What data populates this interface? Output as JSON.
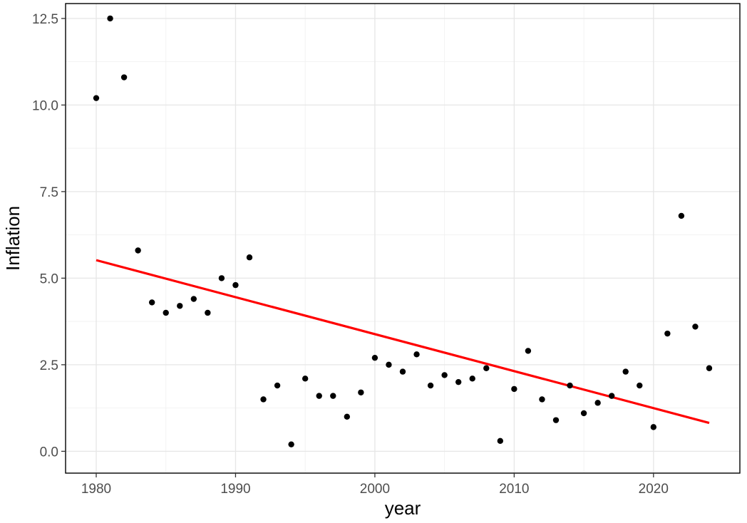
{
  "chart_data": {
    "type": "scatter",
    "xlabel": "year",
    "ylabel": "Inflation",
    "xlim": [
      1977.8,
      2026.2
    ],
    "ylim": [
      -0.63,
      12.93
    ],
    "x_ticks": [
      1980,
      1990,
      2000,
      2010,
      2020
    ],
    "y_ticks": [
      0.0,
      2.5,
      5.0,
      7.5,
      10.0,
      12.5
    ],
    "y_tick_labels": [
      "0.0",
      "2.5",
      "5.0",
      "7.5",
      "10.0",
      "12.5"
    ],
    "grid": true,
    "x": [
      1980,
      1981,
      1982,
      1983,
      1984,
      1985,
      1986,
      1987,
      1988,
      1989,
      1990,
      1991,
      1992,
      1993,
      1994,
      1995,
      1996,
      1997,
      1998,
      1999,
      2000,
      2001,
      2002,
      2003,
      2004,
      2005,
      2006,
      2007,
      2008,
      2009,
      2010,
      2011,
      2012,
      2013,
      2014,
      2015,
      2016,
      2017,
      2018,
      2019,
      2020,
      2021,
      2022,
      2023,
      2024
    ],
    "y": [
      10.2,
      12.5,
      10.8,
      5.8,
      4.3,
      4.0,
      4.2,
      4.4,
      4.0,
      5.0,
      4.8,
      5.6,
      1.5,
      1.9,
      0.2,
      2.1,
      1.6,
      1.6,
      1.0,
      1.7,
      2.7,
      2.5,
      2.3,
      2.8,
      1.9,
      2.2,
      2.0,
      2.1,
      2.4,
      0.3,
      1.8,
      2.9,
      1.5,
      0.9,
      1.9,
      1.1,
      1.4,
      1.6,
      2.3,
      1.9,
      0.7,
      3.4,
      6.8,
      3.6,
      2.4
    ],
    "point_color": "#000000",
    "trend_line": {
      "type": "linear fit",
      "x": [
        1980,
        2024
      ],
      "y": [
        5.52,
        0.82
      ],
      "color": "#ff0000"
    }
  }
}
